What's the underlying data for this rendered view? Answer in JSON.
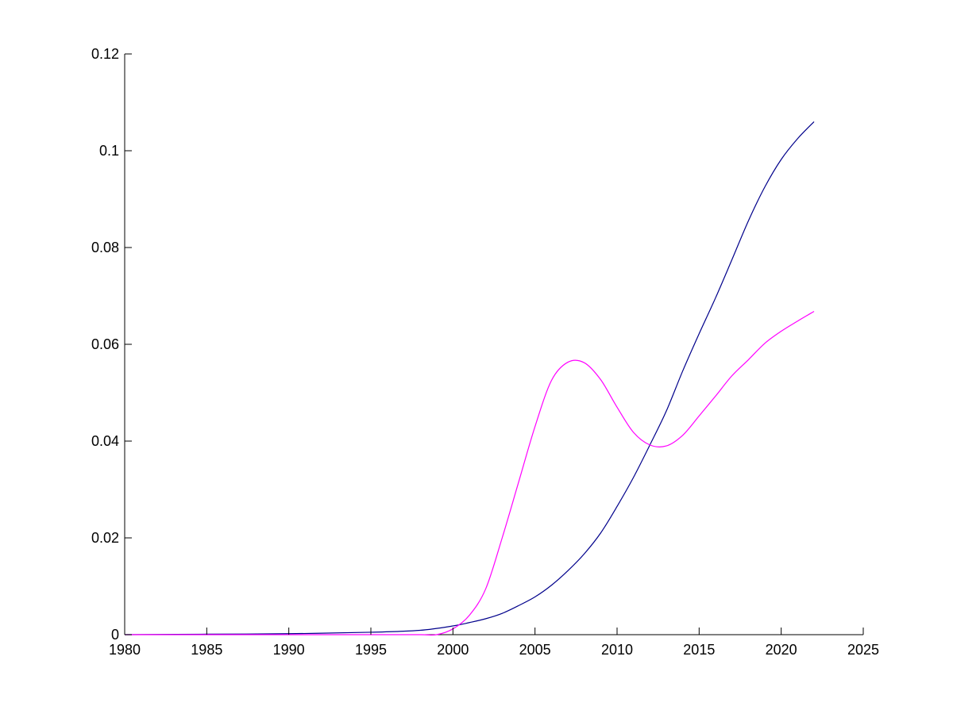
{
  "chart_data": {
    "type": "line",
    "title": "",
    "xlabel": "",
    "ylabel": "",
    "xlim": [
      1980,
      2025
    ],
    "ylim": [
      0,
      0.12
    ],
    "grid": false,
    "legend": "none",
    "xticks": [
      1980,
      1985,
      1990,
      1995,
      2000,
      2005,
      2010,
      2015,
      2020,
      2025
    ],
    "yticks": [
      0,
      0.02,
      0.04,
      0.06,
      0.08,
      0.1,
      0.12
    ],
    "xtick_labels": [
      "1980",
      "1985",
      "1990",
      "1995",
      "2000",
      "2005",
      "2010",
      "2015",
      "2020",
      "2025"
    ],
    "ytick_labels": [
      "0",
      "0.02",
      "0.04",
      "0.06",
      "0.08",
      "0.1",
      "0.12"
    ],
    "series": [
      {
        "color": "#00008b",
        "x": [
          1980,
          1985,
          1990,
          1995,
          1998,
          2000,
          2001,
          2002,
          2003,
          2004,
          2005,
          2006,
          2007,
          2008,
          2009,
          2010,
          2011,
          2012,
          2013,
          2014,
          2015,
          2016,
          2017,
          2018,
          2019,
          2020,
          2021,
          2022
        ],
        "y": [
          0.0,
          0.0001,
          0.0002,
          0.0005,
          0.0009,
          0.0018,
          0.0025,
          0.0033,
          0.0044,
          0.006,
          0.0078,
          0.0102,
          0.0132,
          0.0167,
          0.021,
          0.0265,
          0.0325,
          0.0392,
          0.0462,
          0.0545,
          0.0622,
          0.0696,
          0.0775,
          0.0855,
          0.0925,
          0.0982,
          0.1025,
          0.106
        ]
      },
      {
        "color": "#ff00ff",
        "x": [
          1980,
          1985,
          1990,
          1995,
          1998,
          1999,
          2000,
          2001,
          2002,
          2003,
          2004,
          2005,
          2006,
          2007,
          2008,
          2009,
          2010,
          2011,
          2012,
          2013,
          2014,
          2015,
          2016,
          2017,
          2018,
          2019,
          2020,
          2021,
          2022
        ],
        "y": [
          0.0,
          0.0,
          0.0,
          0.0,
          0.0,
          0.0,
          0.0012,
          0.004,
          0.0095,
          0.02,
          0.0315,
          0.043,
          0.0525,
          0.0563,
          0.0562,
          0.0527,
          0.047,
          0.0418,
          0.0392,
          0.039,
          0.0412,
          0.0452,
          0.0493,
          0.0535,
          0.0568,
          0.0602,
          0.0627,
          0.0648,
          0.0668
        ]
      }
    ]
  }
}
